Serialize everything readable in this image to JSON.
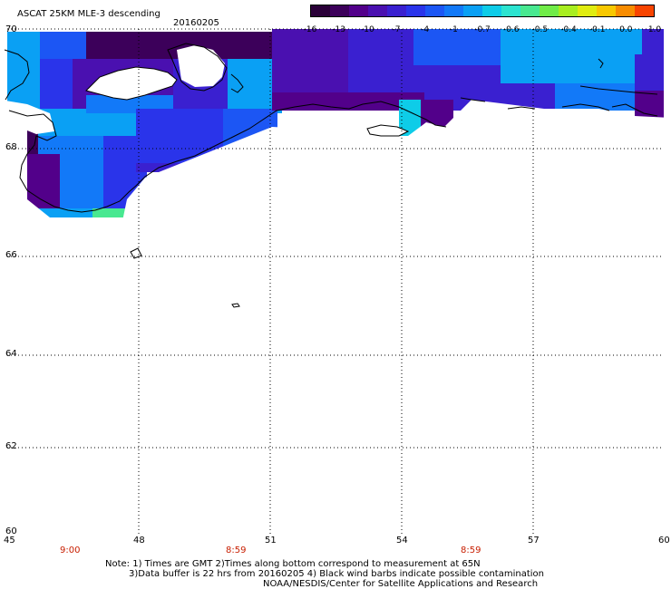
{
  "header": {
    "title": "ASCAT 25KM MLE-3 descending",
    "date": "20160205"
  },
  "colorbar": {
    "colors": [
      "#2a0038",
      "#3c005a",
      "#52008a",
      "#4a10b0",
      "#3a20d0",
      "#2a34ea",
      "#1c56f4",
      "#1279f8",
      "#0aa0f4",
      "#0ecce8",
      "#2ce4d0",
      "#48e890",
      "#70ec48",
      "#a8ee20",
      "#e0ec10",
      "#f8c800",
      "#f88c00",
      "#f84400"
    ],
    "labels": [
      "-16",
      "-13",
      "-10",
      "-7",
      "-4",
      "-1",
      "-0.7",
      "-0.6",
      "-0.5",
      "-0.4",
      "-0.1",
      "0.0",
      "1.0"
    ]
  },
  "axes": {
    "y_ticks": [
      "70",
      "68",
      "66",
      "64",
      "62",
      "60"
    ],
    "x_ticks": [
      "45",
      "48",
      "51",
      "54",
      "57",
      "60"
    ],
    "times": [
      "9:00",
      "8:59",
      "8:59"
    ]
  },
  "footer": {
    "note1": "Note: 1) Times are GMT 2)Times along bottom correspond to measurement at 65N",
    "note2": "3)Data buffer is 22 hrs from 20160205 4) Black wind barbs indicate possible contamination",
    "credit": "NOAA/NESDIS/Center for Satellite Applications and Research"
  },
  "map": {
    "lon_range": [
      45,
      60
    ],
    "lat_range": [
      60,
      70
    ],
    "swath_colors": {
      "deep": "#3c005a",
      "purple": "#52008a",
      "violet": "#4a10b0",
      "indigo": "#3a20d0",
      "blue": "#2a34ea",
      "mid": "#1c56f4",
      "light": "#1279f8",
      "sky": "#0aa0f4",
      "cyan": "#0ecce8",
      "green": "#48e890"
    }
  }
}
